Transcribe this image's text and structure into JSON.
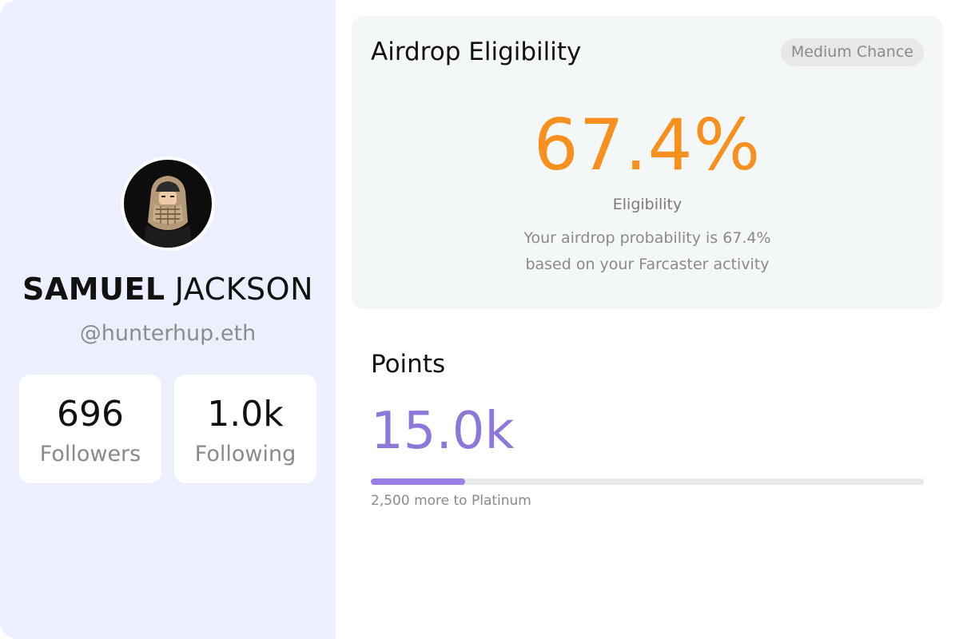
{
  "profile": {
    "first_name": "SAMUEL",
    "last_name": "JACKSON",
    "handle": "@hunterhup.eth",
    "avatar_icon": "avatar-character-icon",
    "followers": {
      "value": "696",
      "label": "Followers"
    },
    "following": {
      "value": "1.0k",
      "label": "Following"
    }
  },
  "eligibility": {
    "title": "Airdrop Eligibility",
    "badge": "Medium Chance",
    "percent": "67.4%",
    "label": "Eligibility",
    "description_line1": "Your airdrop probability is 67.4%",
    "description_line2": "based on your Farcaster activity"
  },
  "points": {
    "title": "Points",
    "value": "15.0k",
    "progress_fraction": 0.17,
    "note": "2,500 more to Platinum"
  },
  "colors": {
    "panel_bg": "#ecf0fe",
    "accent_orange": "#f7901e",
    "accent_purple": "#8e77db",
    "progress_fill": "#9b7fe8"
  }
}
